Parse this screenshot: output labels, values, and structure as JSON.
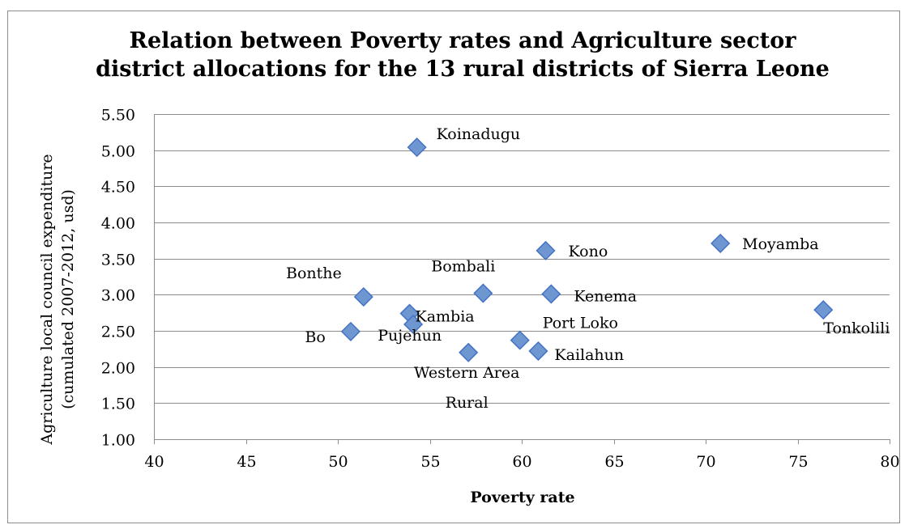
{
  "chart_data": {
    "type": "scatter",
    "title_lines": [
      "Relation between Poverty rates and Agriculture sector",
      "district allocations for the 13 rural districts of Sierra Leone"
    ],
    "xlabel": "Poverty rate",
    "ylabel_lines": [
      "Agriculture local council expenditure",
      "(cumulated 2007-2012, usd)"
    ],
    "xlim": [
      40,
      80
    ],
    "ylim": [
      1.0,
      5.5
    ],
    "x_ticks": [
      "40",
      "45",
      "50",
      "55",
      "60",
      "65",
      "70",
      "75",
      "80"
    ],
    "y_ticks": [
      "1.00",
      "1.50",
      "2.00",
      "2.50",
      "3.00",
      "3.50",
      "4.00",
      "4.50",
      "5.00",
      "5.50"
    ],
    "grid": "horizontal",
    "legend": "none",
    "marker": "diamond",
    "marker_color": "#6e97d2",
    "marker_edge_color": "#4472c4",
    "points": [
      {
        "label": "Koinadugu",
        "x": 54.3,
        "y": 5.04
      },
      {
        "label": "Kono",
        "x": 61.3,
        "y": 3.61
      },
      {
        "label": "Moyamba",
        "x": 70.8,
        "y": 3.71
      },
      {
        "label": "Bonthe",
        "x": 51.4,
        "y": 2.97
      },
      {
        "label": "Bombali",
        "x": 57.9,
        "y": 3.02
      },
      {
        "label": "Kenema",
        "x": 61.6,
        "y": 3.01
      },
      {
        "label": "Kambia",
        "x": 53.9,
        "y": 2.74
      },
      {
        "label": "Tonkolili",
        "x": 76.4,
        "y": 2.79
      },
      {
        "label": "Bo",
        "x": 50.7,
        "y": 2.49
      },
      {
        "label": "Pujehun",
        "x": 54.1,
        "y": 2.59
      },
      {
        "label": "Port Loko",
        "x": 59.9,
        "y": 2.37
      },
      {
        "label": "Kailahun",
        "x": 60.9,
        "y": 2.22
      },
      {
        "label": "Western Area Rural",
        "x": 57.1,
        "y": 2.2
      }
    ]
  }
}
